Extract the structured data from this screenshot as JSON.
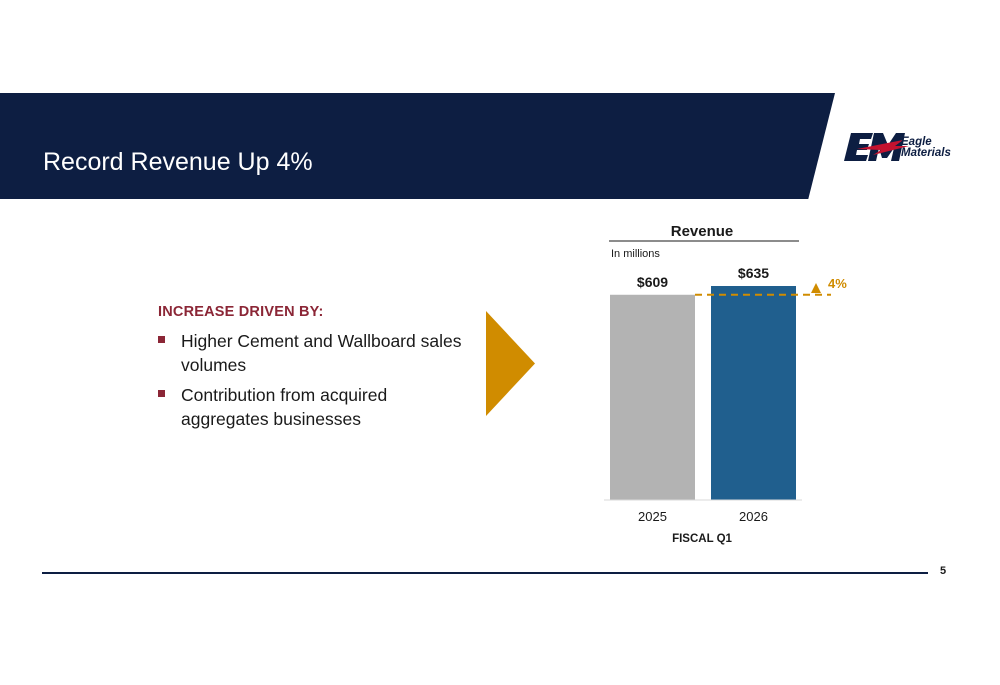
{
  "slide": {
    "title": "Record Revenue Up 4%",
    "page_number": "5"
  },
  "logo": {
    "lines": [
      "Eagle",
      "Materials"
    ]
  },
  "drivers": {
    "heading": "INCREASE DRIVEN BY:",
    "items": [
      "Higher Cement and Wallboard sales volumes",
      "Contribution from acquired aggregates businesses"
    ]
  },
  "colors": {
    "banner": "#0d1e42",
    "accent": "#8b2636",
    "arrow": "#d08c00",
    "bar_2025": "#b3b3b3",
    "bar_2026": "#205f8e",
    "change_indicator": "#d08c00"
  },
  "chart_data": {
    "type": "bar",
    "title": "Revenue",
    "subtitle": "In millions",
    "xlabel": "FISCAL Q1",
    "ylabel": "",
    "categories": [
      "2025",
      "2026"
    ],
    "values": [
      609,
      635
    ],
    "data_labels": [
      "$609",
      "$635"
    ],
    "change_label": "4%",
    "ylim": [
      0,
      650
    ],
    "grid": false,
    "legend": "none"
  }
}
